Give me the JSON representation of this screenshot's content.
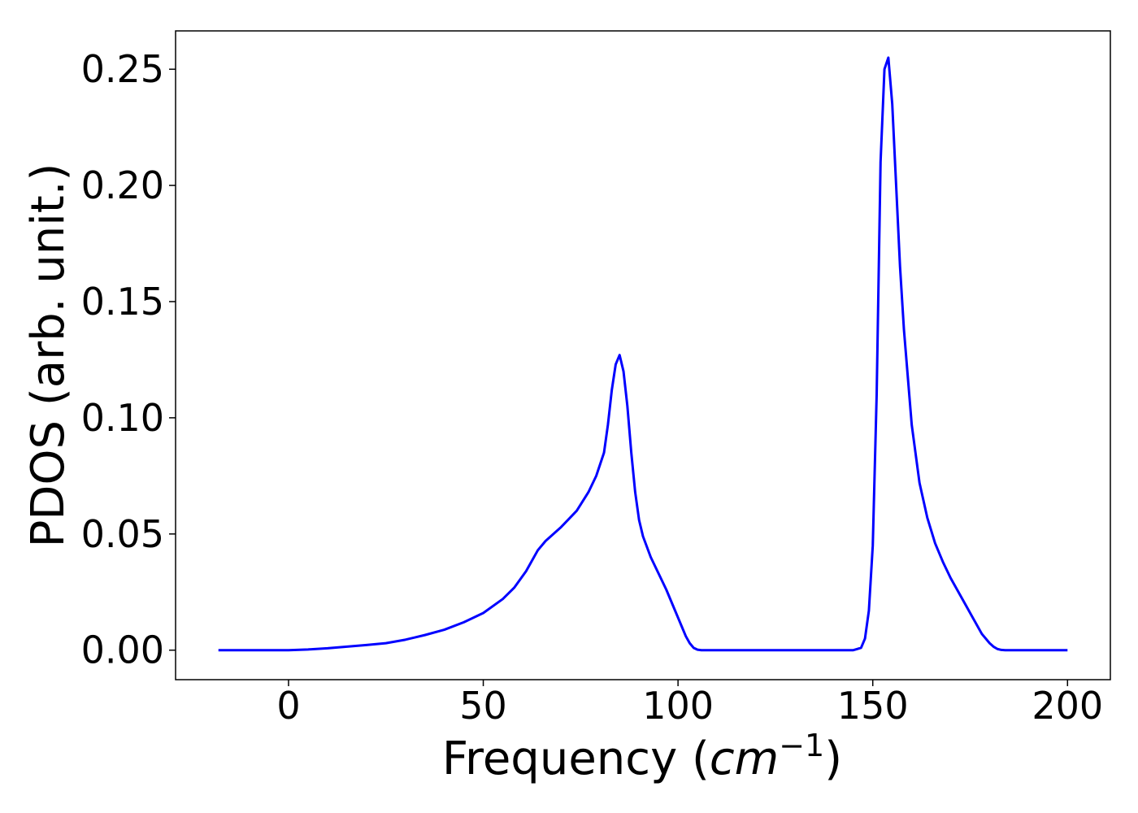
{
  "chart_data": {
    "type": "line",
    "title": "",
    "xlabel": "Frequency (",
    "xlabel_math": "cm",
    "xlabel_sup": "−1",
    "xlabel_close": ")",
    "ylabel": "PDOS (arb. unit.)",
    "xlim": [
      -29,
      211
    ],
    "ylim": [
      -0.0127,
      0.2665
    ],
    "xticks": [
      0,
      50,
      100,
      150,
      200
    ],
    "xtick_labels": [
      "0",
      "50",
      "100",
      "150",
      "200"
    ],
    "yticks": [
      0.0,
      0.05,
      0.1,
      0.15,
      0.2,
      0.25
    ],
    "ytick_labels": [
      "0.00",
      "0.05",
      "0.10",
      "0.15",
      "0.20",
      "0.25"
    ],
    "grid": false,
    "series": [
      {
        "color": "#0000ff",
        "x": [
          -18,
          -10,
          0,
          5,
          10,
          15,
          20,
          25,
          30,
          35,
          40,
          45,
          50,
          55,
          58,
          61,
          64,
          66,
          70,
          74,
          77,
          79,
          81,
          82,
          83,
          84,
          85,
          86,
          87,
          88,
          89,
          90,
          91,
          93,
          95,
          97,
          99,
          100,
          101,
          102,
          103,
          104,
          105,
          106,
          108,
          110,
          120,
          130,
          140,
          145,
          146,
          147,
          148,
          149,
          150,
          151,
          152,
          153,
          154,
          155,
          156,
          157,
          158,
          160,
          162,
          164,
          166,
          168,
          170,
          172,
          174,
          176,
          178,
          180,
          181,
          182,
          183,
          184,
          185,
          186,
          188,
          200
        ],
        "y": [
          0.0,
          0.0,
          0.0,
          0.0003,
          0.0008,
          0.0015,
          0.0022,
          0.003,
          0.0045,
          0.0065,
          0.0088,
          0.012,
          0.016,
          0.022,
          0.027,
          0.034,
          0.043,
          0.047,
          0.053,
          0.06,
          0.068,
          0.075,
          0.085,
          0.097,
          0.112,
          0.123,
          0.127,
          0.12,
          0.105,
          0.085,
          0.068,
          0.056,
          0.049,
          0.04,
          0.033,
          0.026,
          0.018,
          0.014,
          0.01,
          0.006,
          0.003,
          0.001,
          0.0002,
          0.0,
          0.0,
          0.0,
          0.0,
          0.0,
          0.0,
          0.0,
          0.0005,
          0.001,
          0.005,
          0.017,
          0.045,
          0.11,
          0.21,
          0.25,
          0.255,
          0.235,
          0.2,
          0.165,
          0.138,
          0.097,
          0.072,
          0.057,
          0.046,
          0.038,
          0.031,
          0.025,
          0.019,
          0.013,
          0.007,
          0.003,
          0.0015,
          0.0005,
          0.0001,
          0.0,
          0.0,
          0.0,
          0.0,
          0.0
        ]
      }
    ]
  }
}
